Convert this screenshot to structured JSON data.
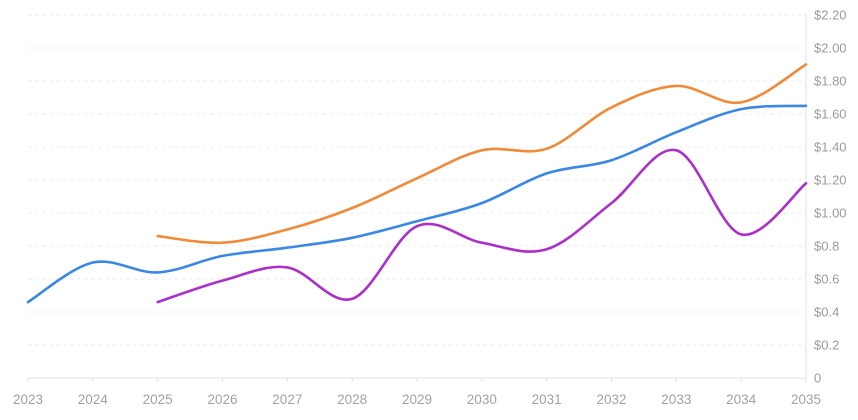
{
  "chart_data": {
    "type": "line",
    "title": "",
    "xlabel": "",
    "ylabel": "",
    "x_tick_labels": [
      "2023",
      "2024",
      "2025",
      "2026",
      "2027",
      "2028",
      "2029",
      "2030",
      "2031",
      "2032",
      "2033",
      "2034",
      "2035"
    ],
    "y_tick_labels_top_to_bottom": [
      "$2.20",
      "$2.00",
      "$1.80",
      "$1.60",
      "$1.40",
      "$1.20",
      "$1.00",
      "$0.8",
      "$0.6",
      "$0.4",
      "$0.2",
      "0"
    ],
    "x_range": [
      2023,
      2035
    ],
    "ylim": [
      0,
      2.2
    ],
    "y_tick_step": 0.2,
    "grid": "horizontal-dashed",
    "legend": "none",
    "axis_position": "right",
    "colors": {
      "grid": "#ececec",
      "axis": "#e2e2e2",
      "tick_label": "#9b9b9b"
    },
    "series": [
      {
        "name": "blue",
        "color": "#3b87e4",
        "stroke_width": 2.6,
        "x": [
          2023,
          2024,
          2025,
          2026,
          2027,
          2028,
          2029,
          2030,
          2031,
          2032,
          2033,
          2034,
          2035
        ],
        "values": [
          0.46,
          0.7,
          0.64,
          0.74,
          0.79,
          0.85,
          0.95,
          1.06,
          1.24,
          1.32,
          1.49,
          1.63,
          1.65
        ]
      },
      {
        "name": "orange",
        "color": "#f08a38",
        "stroke_width": 2.6,
        "x": [
          2025,
          2026,
          2027,
          2028,
          2029,
          2030,
          2031,
          2032,
          2033,
          2034,
          2035
        ],
        "values": [
          0.86,
          0.82,
          0.9,
          1.03,
          1.21,
          1.38,
          1.39,
          1.64,
          1.77,
          1.67,
          1.9
        ]
      },
      {
        "name": "purple",
        "color": "#ab2fc9",
        "stroke_width": 2.6,
        "x": [
          2025,
          2026,
          2027,
          2028,
          2029,
          2030,
          2031,
          2032,
          2033,
          2034,
          2035
        ],
        "values": [
          0.46,
          0.59,
          0.67,
          0.48,
          0.92,
          0.82,
          0.78,
          1.06,
          1.38,
          0.87,
          1.18
        ]
      }
    ]
  }
}
